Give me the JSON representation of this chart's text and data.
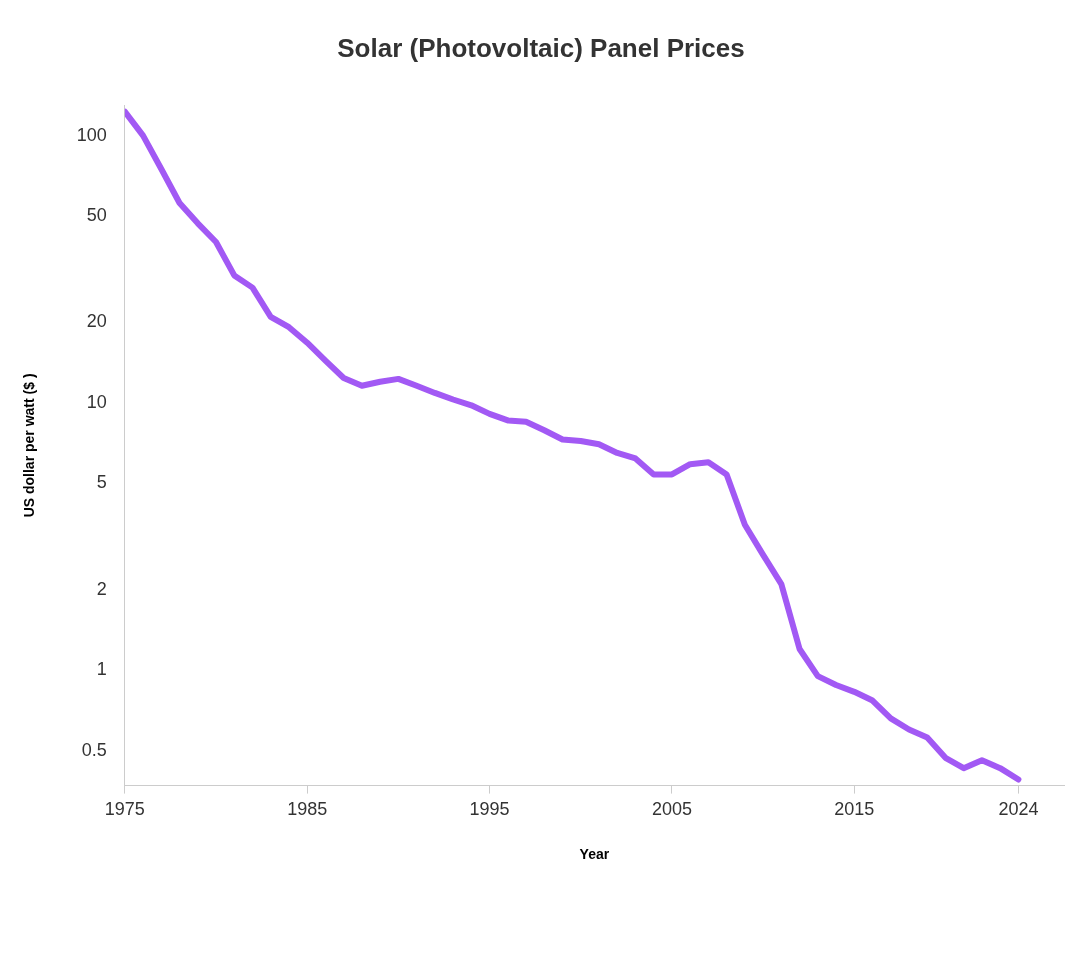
{
  "chart_data": {
    "type": "line",
    "title": "Solar (Photovoltaic) Panel Prices",
    "xlabel": "Year",
    "ylabel": "US dollar per watt ($ )",
    "x": [
      1975,
      1976,
      1977,
      1978,
      1979,
      1980,
      1981,
      1982,
      1983,
      1984,
      1985,
      1986,
      1987,
      1988,
      1989,
      1990,
      1991,
      1992,
      1993,
      1994,
      1995,
      1996,
      1997,
      1998,
      1999,
      2000,
      2001,
      2002,
      2003,
      2004,
      2005,
      2006,
      2007,
      2008,
      2009,
      2010,
      2011,
      2012,
      2013,
      2014,
      2015,
      2016,
      2017,
      2018,
      2019,
      2020,
      2021,
      2022,
      2023,
      2024
    ],
    "series": [
      {
        "color": "#a259f4",
        "values": [
          123,
          100,
          75,
          56,
          47,
          40,
          30,
          27,
          21,
          19.2,
          16.8,
          14.4,
          12.4,
          11.6,
          12.0,
          12.3,
          11.6,
          10.9,
          10.3,
          9.8,
          9.1,
          8.6,
          8.5,
          7.9,
          7.3,
          7.2,
          7.0,
          6.5,
          6.2,
          5.4,
          5.4,
          5.9,
          6.0,
          5.4,
          3.5,
          2.7,
          2.1,
          1.2,
          0.95,
          0.88,
          0.83,
          0.77,
          0.66,
          0.6,
          0.56,
          0.47,
          0.43,
          0.46,
          0.43,
          0.39
        ]
      }
    ],
    "log": "y",
    "xlim": [
      1975,
      2026.5
    ],
    "ylim": [
      0.37,
      130
    ],
    "xticks": [
      1975,
      1985,
      1995,
      2005,
      2015,
      2024
    ],
    "yticks": [
      0.5,
      1,
      2,
      5,
      10,
      20,
      50,
      100
    ],
    "grid": false,
    "legend": false,
    "marker": "none",
    "line_style": "solid"
  }
}
